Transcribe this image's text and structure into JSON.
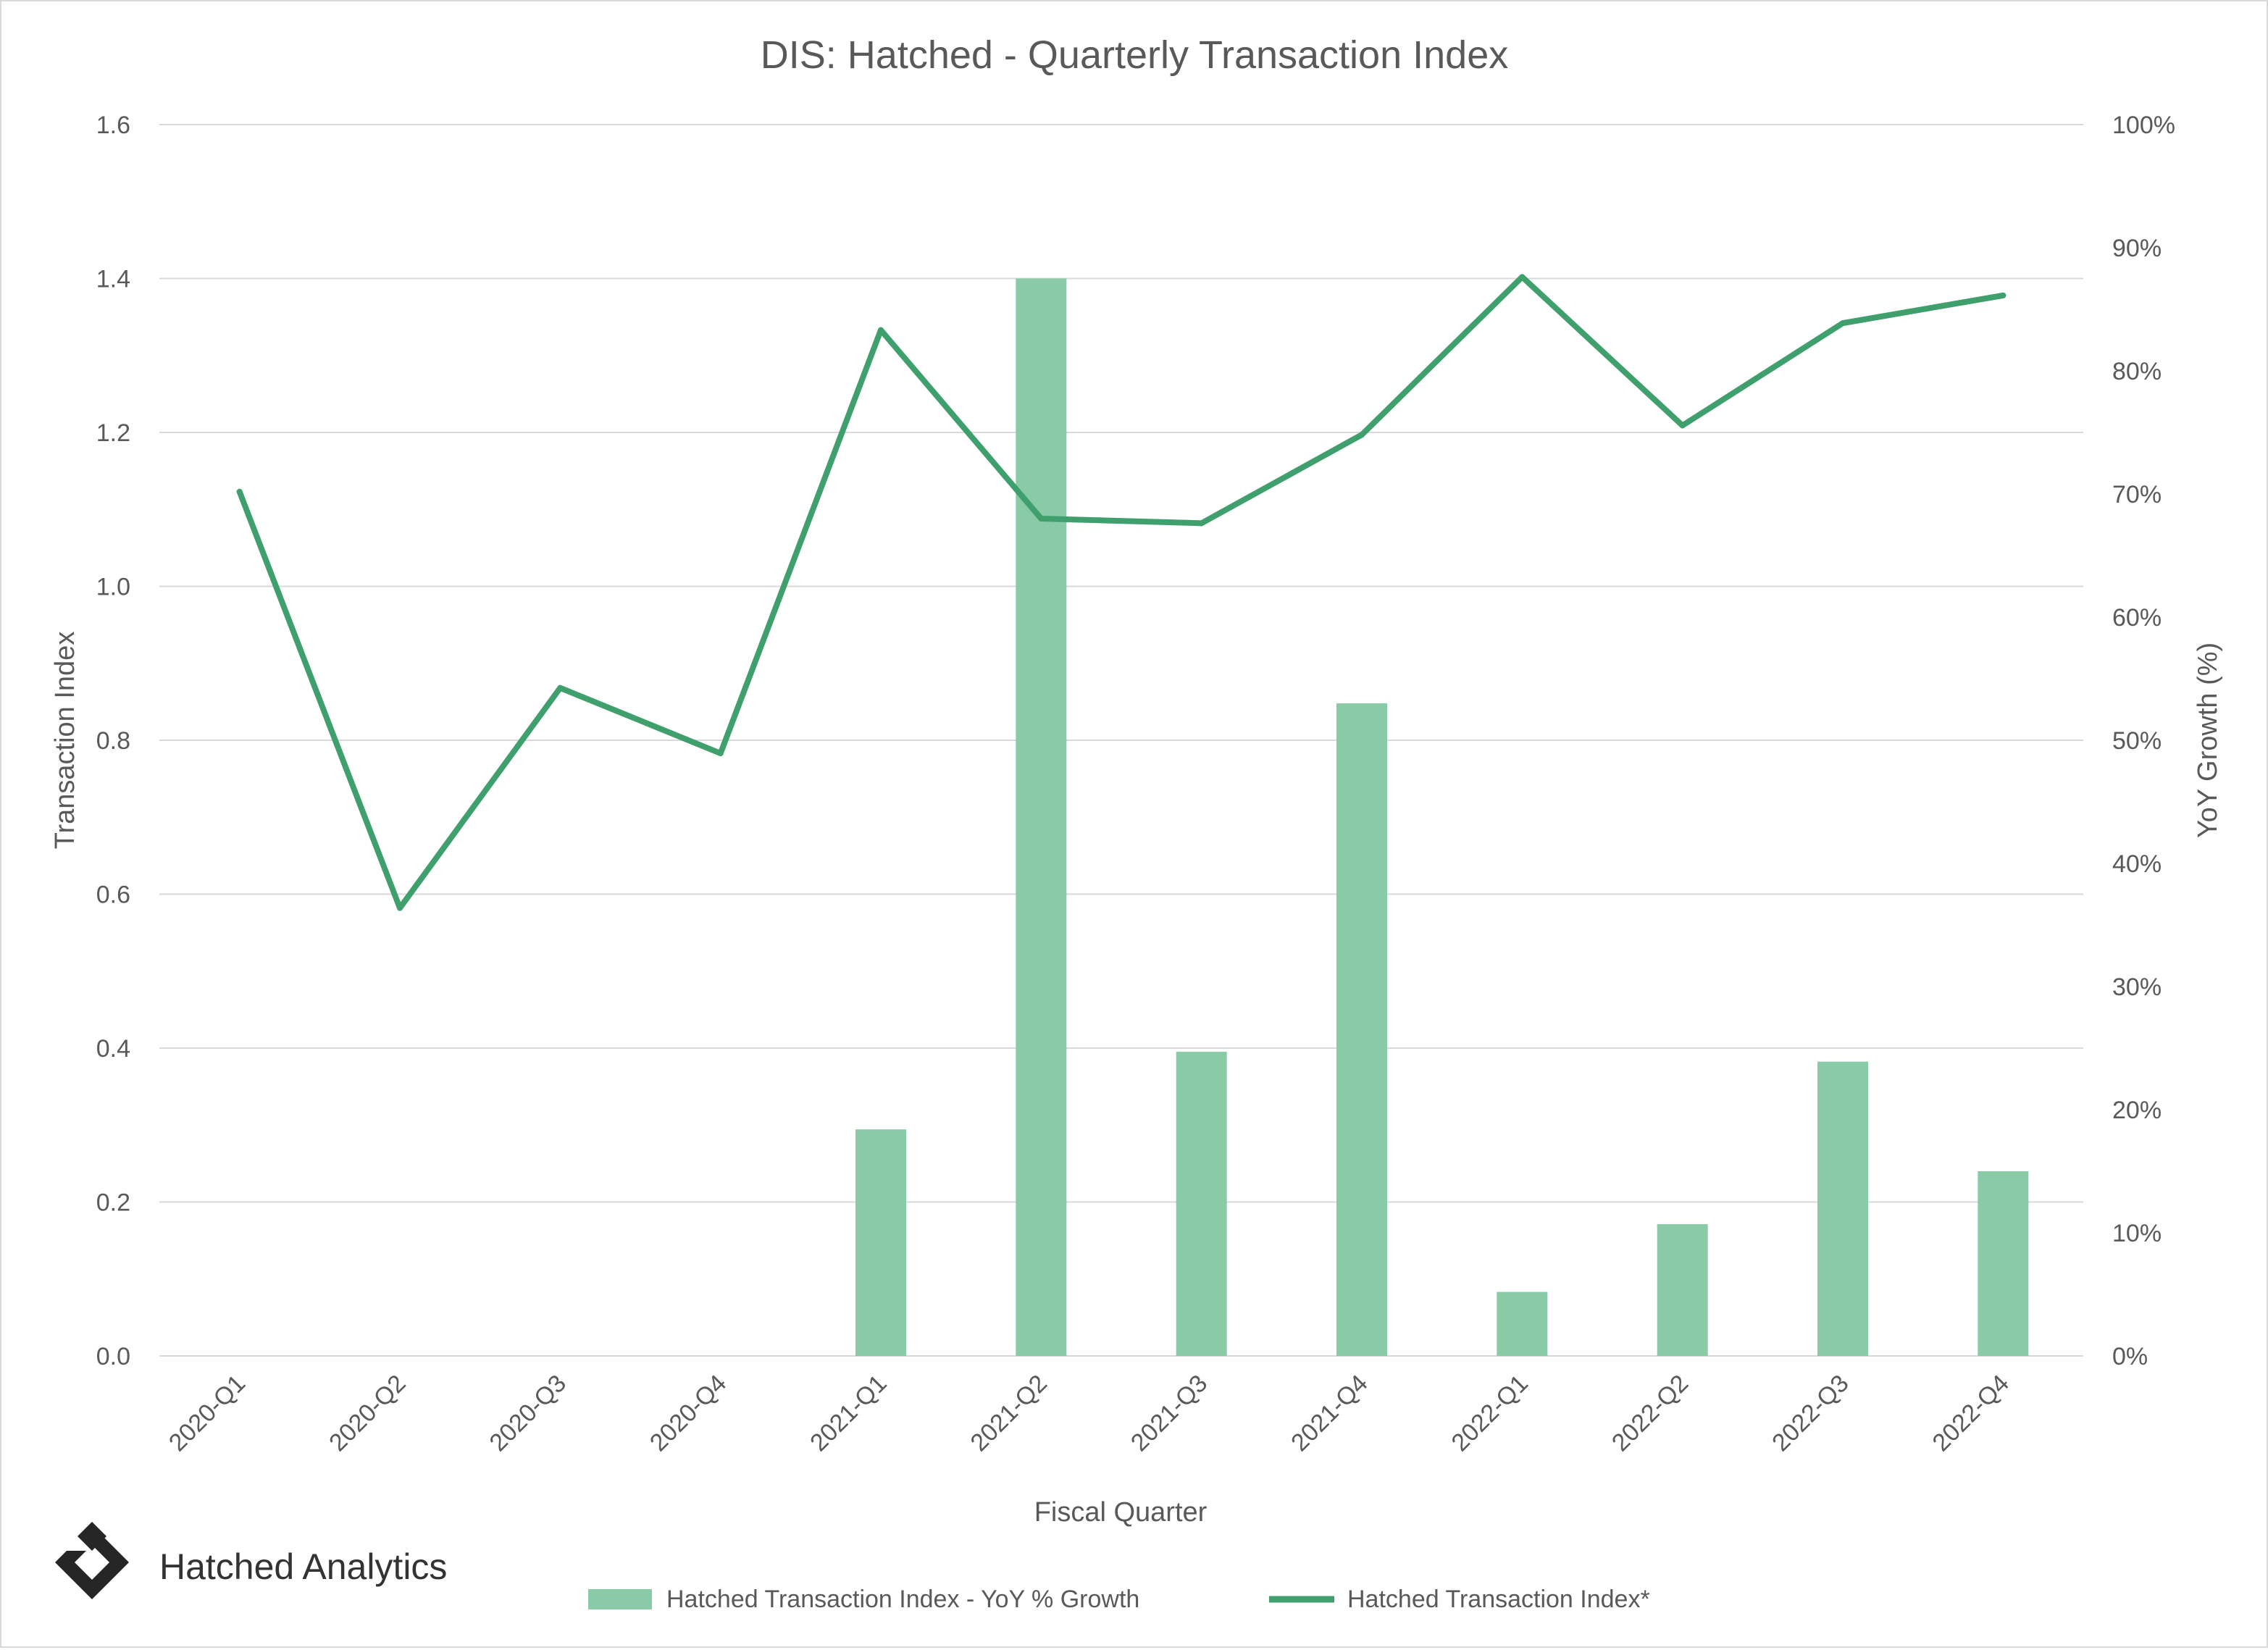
{
  "chart_data": {
    "type": "bar+line",
    "title": "DIS: Hatched - Quarterly Transaction Index",
    "xlabel": "Fiscal Quarter",
    "ylabel_left": "Transaction Index",
    "ylabel_right": "YoY Growth (%)",
    "categories": [
      "2020-Q1",
      "2020-Q2",
      "2020-Q3",
      "2020-Q4",
      "2021-Q1",
      "2021-Q2",
      "2021-Q3",
      "2021-Q4",
      "2022-Q1",
      "2022-Q2",
      "2022-Q3",
      "2022-Q4"
    ],
    "ylim_left": [
      0,
      1.6
    ],
    "ylim_right": [
      0,
      100
    ],
    "left_ticks": [
      "0.0",
      "0.2",
      "0.4",
      "0.6",
      "0.8",
      "1.0",
      "1.2",
      "1.4",
      "1.6"
    ],
    "right_ticks": [
      "0%",
      "10%",
      "20%",
      "30%",
      "40%",
      "50%",
      "60%",
      "70%",
      "80%",
      "90%",
      "100%"
    ],
    "grid": true,
    "legend_position": "bottom",
    "series": [
      {
        "name": "Hatched Transaction Index - YoY % Growth",
        "type": "bar",
        "axis": "right",
        "color": "#88cba6",
        "values": [
          null,
          null,
          null,
          null,
          18.4,
          87.5,
          24.7,
          53.0,
          5.2,
          10.7,
          23.9,
          15.0
        ]
      },
      {
        "name": "Hatched Transaction Index*",
        "type": "line",
        "axis": "left",
        "color": "#40a06d",
        "values": [
          1.123,
          0.582,
          0.868,
          0.783,
          1.333,
          1.088,
          1.082,
          1.197,
          1.402,
          1.209,
          1.342,
          1.378
        ]
      }
    ]
  },
  "brand": {
    "name": "Hatched Analytics",
    "logo_icon": "hatched-diamond-logo",
    "logo_color": "#262626"
  },
  "colors": {
    "gridline": "#d9d9d9",
    "text": "#595959",
    "bar": "#88cba6",
    "line": "#40a06d"
  }
}
